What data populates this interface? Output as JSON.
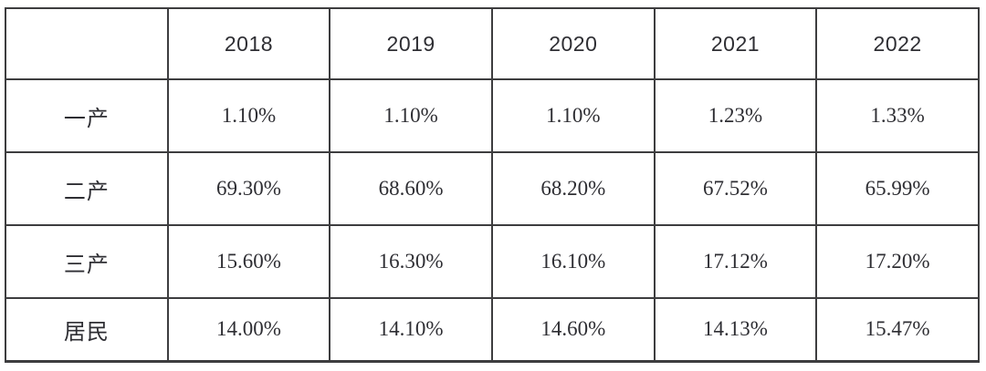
{
  "colors": {
    "border": "#3d3d3f",
    "text": "#2e2e33",
    "background": "#ffffff"
  },
  "chart_data": {
    "type": "table",
    "columns": [
      "",
      "2018",
      "2019",
      "2020",
      "2021",
      "2022"
    ],
    "rows": [
      {
        "label": "一产",
        "values": [
          "1.10%",
          "1.10%",
          "1.10%",
          "1.23%",
          "1.33%"
        ]
      },
      {
        "label": "二产",
        "values": [
          "69.30%",
          "68.60%",
          "68.20%",
          "67.52%",
          "65.99%"
        ]
      },
      {
        "label": "三产",
        "values": [
          "15.60%",
          "16.30%",
          "16.10%",
          "17.12%",
          "17.20%"
        ]
      },
      {
        "label": "居民",
        "values": [
          "14.00%",
          "14.10%",
          "14.60%",
          "14.13%",
          "15.47%"
        ]
      }
    ]
  }
}
